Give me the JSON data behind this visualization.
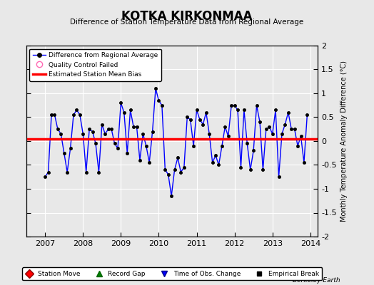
{
  "title": "KOTKA KIRKONMAA",
  "subtitle": "Difference of Station Temperature Data from Regional Average",
  "ylabel": "Monthly Temperature Anomaly Difference (°C)",
  "xlim": [
    2006.5,
    2014.2
  ],
  "ylim": [
    -2,
    2
  ],
  "yticks": [
    -2,
    -1.5,
    -1,
    -0.5,
    0,
    0.5,
    1,
    1.5,
    2
  ],
  "xticks": [
    2007,
    2008,
    2009,
    2010,
    2011,
    2012,
    2013,
    2014
  ],
  "background_color": "#e8e8e8",
  "grid_color": "#ffffff",
  "line_color": "#0000ff",
  "bias_y": 0.05,
  "bias_color": "#ff0000",
  "watermark": "Berkeley Earth",
  "data_x": [
    2007.0,
    2007.083,
    2007.167,
    2007.25,
    2007.333,
    2007.417,
    2007.5,
    2007.583,
    2007.667,
    2007.75,
    2007.833,
    2007.917,
    2008.0,
    2008.083,
    2008.167,
    2008.25,
    2008.333,
    2008.417,
    2008.5,
    2008.583,
    2008.667,
    2008.75,
    2008.833,
    2008.917,
    2009.0,
    2009.083,
    2009.167,
    2009.25,
    2009.333,
    2009.417,
    2009.5,
    2009.583,
    2009.667,
    2009.75,
    2009.833,
    2009.917,
    2010.0,
    2010.083,
    2010.167,
    2010.25,
    2010.333,
    2010.417,
    2010.5,
    2010.583,
    2010.667,
    2010.75,
    2010.833,
    2010.917,
    2011.0,
    2011.083,
    2011.167,
    2011.25,
    2011.333,
    2011.417,
    2011.5,
    2011.583,
    2011.667,
    2011.75,
    2011.833,
    2011.917,
    2012.0,
    2012.083,
    2012.167,
    2012.25,
    2012.333,
    2012.417,
    2012.5,
    2012.583,
    2012.667,
    2012.75,
    2012.833,
    2012.917,
    2013.0,
    2013.083,
    2013.167,
    2013.25,
    2013.333,
    2013.417,
    2013.5,
    2013.583,
    2013.667,
    2013.75,
    2013.833,
    2013.917
  ],
  "data_y": [
    -0.75,
    -0.65,
    0.55,
    0.55,
    0.25,
    0.15,
    -0.25,
    -0.65,
    -0.15,
    0.55,
    0.65,
    0.55,
    0.15,
    -0.65,
    0.25,
    0.2,
    -0.05,
    -0.65,
    0.35,
    0.15,
    0.25,
    0.25,
    -0.05,
    -0.15,
    0.8,
    0.6,
    -0.25,
    0.65,
    0.3,
    0.3,
    -0.4,
    0.15,
    -0.1,
    -0.45,
    0.2,
    1.1,
    0.85,
    0.75,
    -0.6,
    -0.7,
    -1.15,
    -0.6,
    -0.35,
    -0.65,
    -0.55,
    0.5,
    0.45,
    -0.1,
    0.65,
    0.45,
    0.35,
    0.6,
    0.15,
    -0.45,
    -0.3,
    -0.5,
    -0.1,
    0.3,
    0.1,
    0.75,
    0.75,
    0.65,
    -0.55,
    0.65,
    -0.05,
    -0.6,
    -0.2,
    0.75,
    0.4,
    -0.6,
    0.25,
    0.3,
    0.15,
    0.65,
    -0.75,
    0.15,
    0.35,
    0.6,
    0.25,
    0.25,
    -0.1,
    0.1,
    -0.45,
    0.55
  ]
}
